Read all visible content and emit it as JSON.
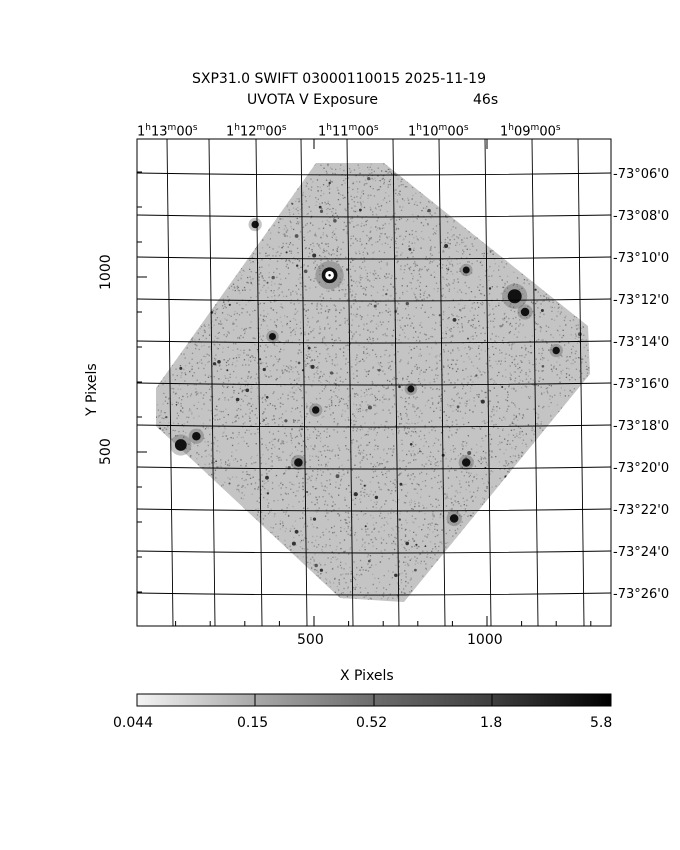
{
  "title": {
    "line1": "SXP31.0 SWIFT 03000110015 2025-11-19",
    "line2_left": "UVOTA V Exposure",
    "line2_right": "46s"
  },
  "ra_labels": [
    {
      "h": "1",
      "m": "13",
      "s": "00"
    },
    {
      "h": "1",
      "m": "12",
      "s": "00"
    },
    {
      "h": "1",
      "m": "11",
      "s": "00"
    },
    {
      "h": "1",
      "m": "10",
      "s": "00"
    },
    {
      "h": "1",
      "m": "09",
      "s": "00"
    }
  ],
  "dec_labels": [
    "-73°06'0",
    "-73°08'0",
    "-73°10'0",
    "-73°12'0",
    "-73°14'0",
    "-73°16'0",
    "-73°18'0",
    "-73°20'0",
    "-73°22'0",
    "-73°24'0",
    "-73°26'0"
  ],
  "x_axis": {
    "label": "X Pixels",
    "ticks": [
      "500",
      "1000"
    ]
  },
  "y_axis": {
    "label": "Y Pixels",
    "ticks": [
      "1000",
      "500"
    ]
  },
  "colorbar": {
    "ticks": [
      "0.044",
      "0.15",
      "0.52",
      "1.8",
      "5.8"
    ]
  },
  "colors": {
    "frame": "#000000",
    "background": "#ffffff",
    "noise": "#9a9a9a"
  },
  "sources": [
    {
      "x": 545,
      "y": 1005,
      "level": 5.8
    },
    {
      "x": 1080,
      "y": 945,
      "level": 5.0
    },
    {
      "x": 1110,
      "y": 900,
      "level": 2.5
    },
    {
      "x": 115,
      "y": 520,
      "level": 4.0
    },
    {
      "x": 160,
      "y": 545,
      "level": 2.5
    },
    {
      "x": 455,
      "y": 470,
      "level": 2.5
    },
    {
      "x": 940,
      "y": 470,
      "level": 2.5
    },
    {
      "x": 905,
      "y": 310,
      "level": 2.5
    },
    {
      "x": 1200,
      "y": 790,
      "level": 2.0
    },
    {
      "x": 330,
      "y": 1150,
      "level": 2.0
    },
    {
      "x": 505,
      "y": 620,
      "level": 2.0
    },
    {
      "x": 940,
      "y": 1020,
      "level": 1.8
    },
    {
      "x": 380,
      "y": 830,
      "level": 1.8
    },
    {
      "x": 780,
      "y": 680,
      "level": 1.8
    }
  ]
}
